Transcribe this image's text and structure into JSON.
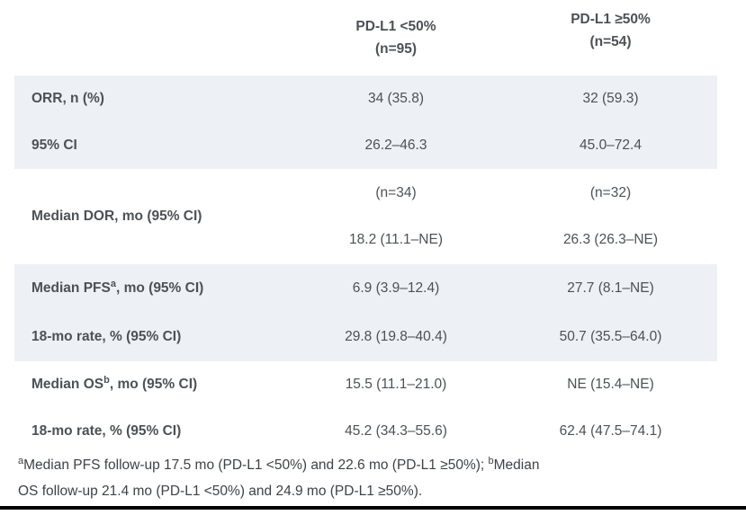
{
  "header": {
    "col1": {
      "line1": "PD-L1 <50%",
      "line2": "(n=95)"
    },
    "col2": {
      "line1": "PD-L1 ≥50%",
      "line2": "(n=54)"
    }
  },
  "groups": [
    {
      "rows": [
        {
          "label": "ORR, n (%)",
          "v1": "34 (35.8)",
          "v2": "32 (59.3)"
        },
        {
          "label": "95% CI",
          "v1": "26.2–46.3",
          "v2": "45.0–72.4"
        }
      ]
    },
    {
      "dor": {
        "label": "Median DOR, mo (95% CI)",
        "n1": "(n=34)",
        "value1": "18.2 (11.1–NE)",
        "n2": "(n=32)",
        "value2": "26.3 (26.3–NE)"
      }
    },
    {
      "rows": [
        {
          "label_pre": "Median PFS",
          "label_sup": "a",
          "label_post": ", mo (95% CI)",
          "v1": "6.9 (3.9–12.4)",
          "v2": "27.7 (8.1–NE)"
        },
        {
          "label": "18-mo rate, % (95% CI)",
          "v1": "29.8 (19.8–40.4)",
          "v2": "50.7 (35.5–64.0)"
        }
      ]
    },
    {
      "rows": [
        {
          "label_pre": "Median OS",
          "label_sup": "b",
          "label_post": ", mo (95% CI)",
          "v1": "15.5 (11.1–21.0)",
          "v2": "NE (15.4–NE)"
        },
        {
          "label": "18-mo rate, % (95% CI)",
          "v1": "45.2 (34.3–55.6)",
          "v2": "62.4 (47.5–74.1)"
        }
      ]
    }
  ],
  "footnote": {
    "sup_a": "a",
    "line1_text": "Median PFS follow-up 17.5 mo (PD-L1 <50%) and 22.6 mo (PD-L1 ≥50%); ",
    "sup_b": "b",
    "line1_tail": "Median",
    "line2_text": "OS follow-up 21.4 mo (PD-L1 <50%) and 24.9 mo (PD-L1 ≥50%)."
  },
  "colors": {
    "band-bg": "#edf1f5",
    "text": "#4d5156",
    "footnote-text": "#3f4246",
    "bottom-bar": "#000000"
  }
}
